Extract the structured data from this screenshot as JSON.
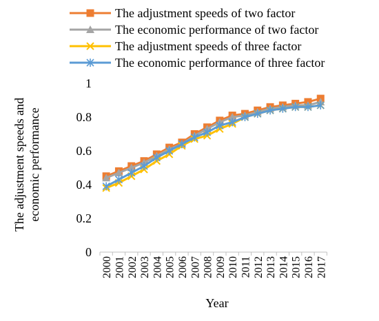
{
  "chart_data": {
    "type": "line",
    "title": "",
    "xlabel": "Year",
    "ylabel": [
      "The adjustment speeds and",
      "economic performance"
    ],
    "ylim": [
      0,
      1
    ],
    "yticks": [
      0,
      0.2,
      0.4,
      0.6,
      0.8,
      1
    ],
    "ytick_labels": [
      "0",
      "0.2",
      "0.4",
      "0.6",
      "0.8",
      "1"
    ],
    "categories": [
      "2000",
      "2001",
      "2002",
      "2003",
      "2004",
      "2005",
      "2006",
      "2007",
      "2008",
      "2009",
      "2010",
      "2011",
      "2012",
      "2013",
      "2014",
      "2015",
      "2016",
      "2017"
    ],
    "grid": false,
    "legend_position": "top",
    "series": [
      {
        "name": "The adjustment speeds of two factor",
        "color": "#ED7D31",
        "marker": "square",
        "values": [
          0.45,
          0.48,
          0.51,
          0.54,
          0.58,
          0.62,
          0.65,
          0.7,
          0.74,
          0.78,
          0.81,
          0.82,
          0.84,
          0.86,
          0.87,
          0.88,
          0.89,
          0.91
        ]
      },
      {
        "name": "The economic performance of two factor",
        "color": "#A5A5A5",
        "marker": "triangle",
        "values": [
          0.44,
          0.47,
          0.5,
          0.53,
          0.57,
          0.61,
          0.64,
          0.69,
          0.73,
          0.77,
          0.8,
          0.81,
          0.83,
          0.85,
          0.86,
          0.87,
          0.87,
          0.89
        ]
      },
      {
        "name": "The adjustment speeds of three factor",
        "color": "#FFC000",
        "marker": "x",
        "values": [
          0.38,
          0.41,
          0.45,
          0.49,
          0.54,
          0.58,
          0.63,
          0.67,
          0.69,
          0.73,
          0.76,
          0.8,
          0.82,
          0.84,
          0.85,
          0.86,
          0.86,
          0.87
        ]
      },
      {
        "name": "The economic performance of three factor",
        "color": "#5B9BD5",
        "marker": "star",
        "values": [
          0.39,
          0.43,
          0.47,
          0.51,
          0.56,
          0.6,
          0.64,
          0.68,
          0.71,
          0.75,
          0.77,
          0.8,
          0.82,
          0.84,
          0.85,
          0.86,
          0.86,
          0.87
        ]
      }
    ]
  }
}
